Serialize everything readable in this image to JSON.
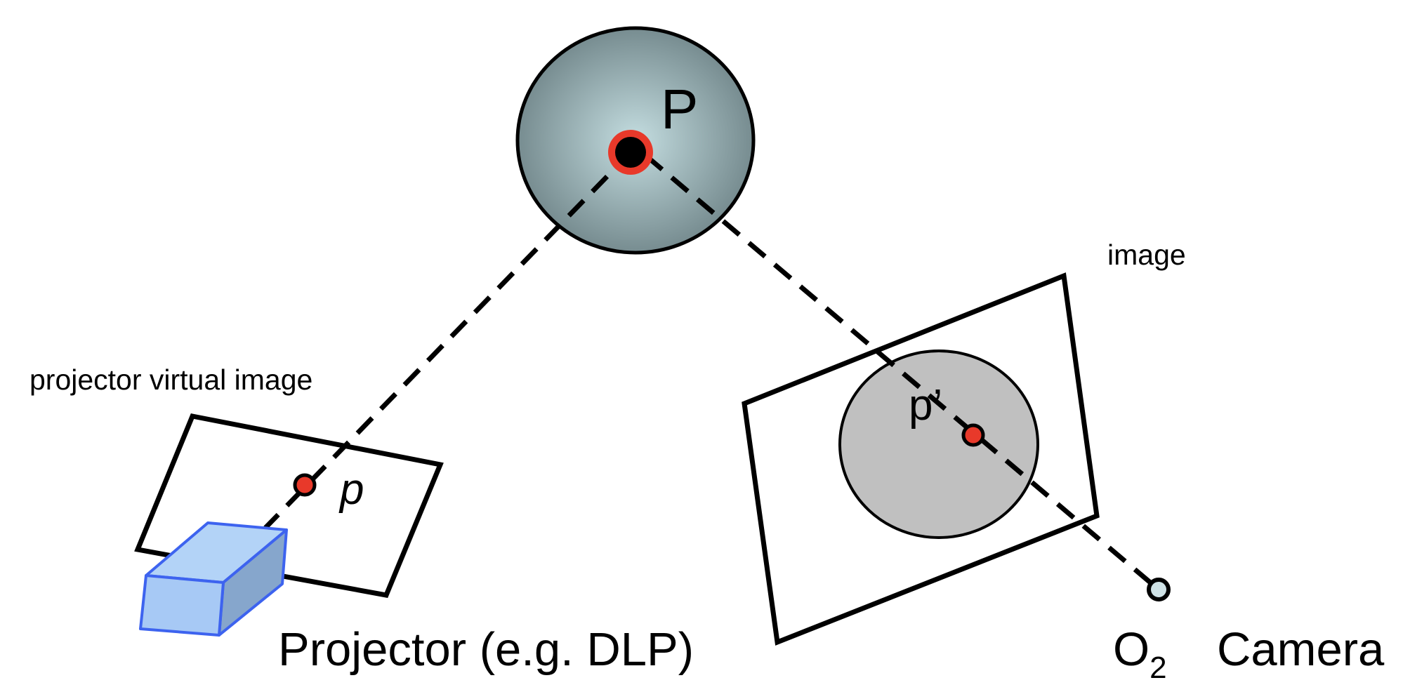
{
  "diagram": {
    "labels": {
      "world_point": "P",
      "projector_point": "p",
      "camera_point": "p’",
      "camera_image": "image",
      "projector_image": "projector virtual image",
      "projector": "Projector (e.g. DLP)",
      "camera_center": "O",
      "camera_center_subscript": "2",
      "camera": "Camera"
    },
    "colors": {
      "sphere_light": "#c4dde0",
      "sphere_dark": "#6f8488",
      "point_red": "#e8392a",
      "projector_blue_light": "#b3d3f7",
      "projector_blue_dark": "#86a6cc",
      "projector_edge": "#3d63ef",
      "camera_blob": "#c0c0c0",
      "camera_center_fill": "#cfe2e6"
    }
  }
}
